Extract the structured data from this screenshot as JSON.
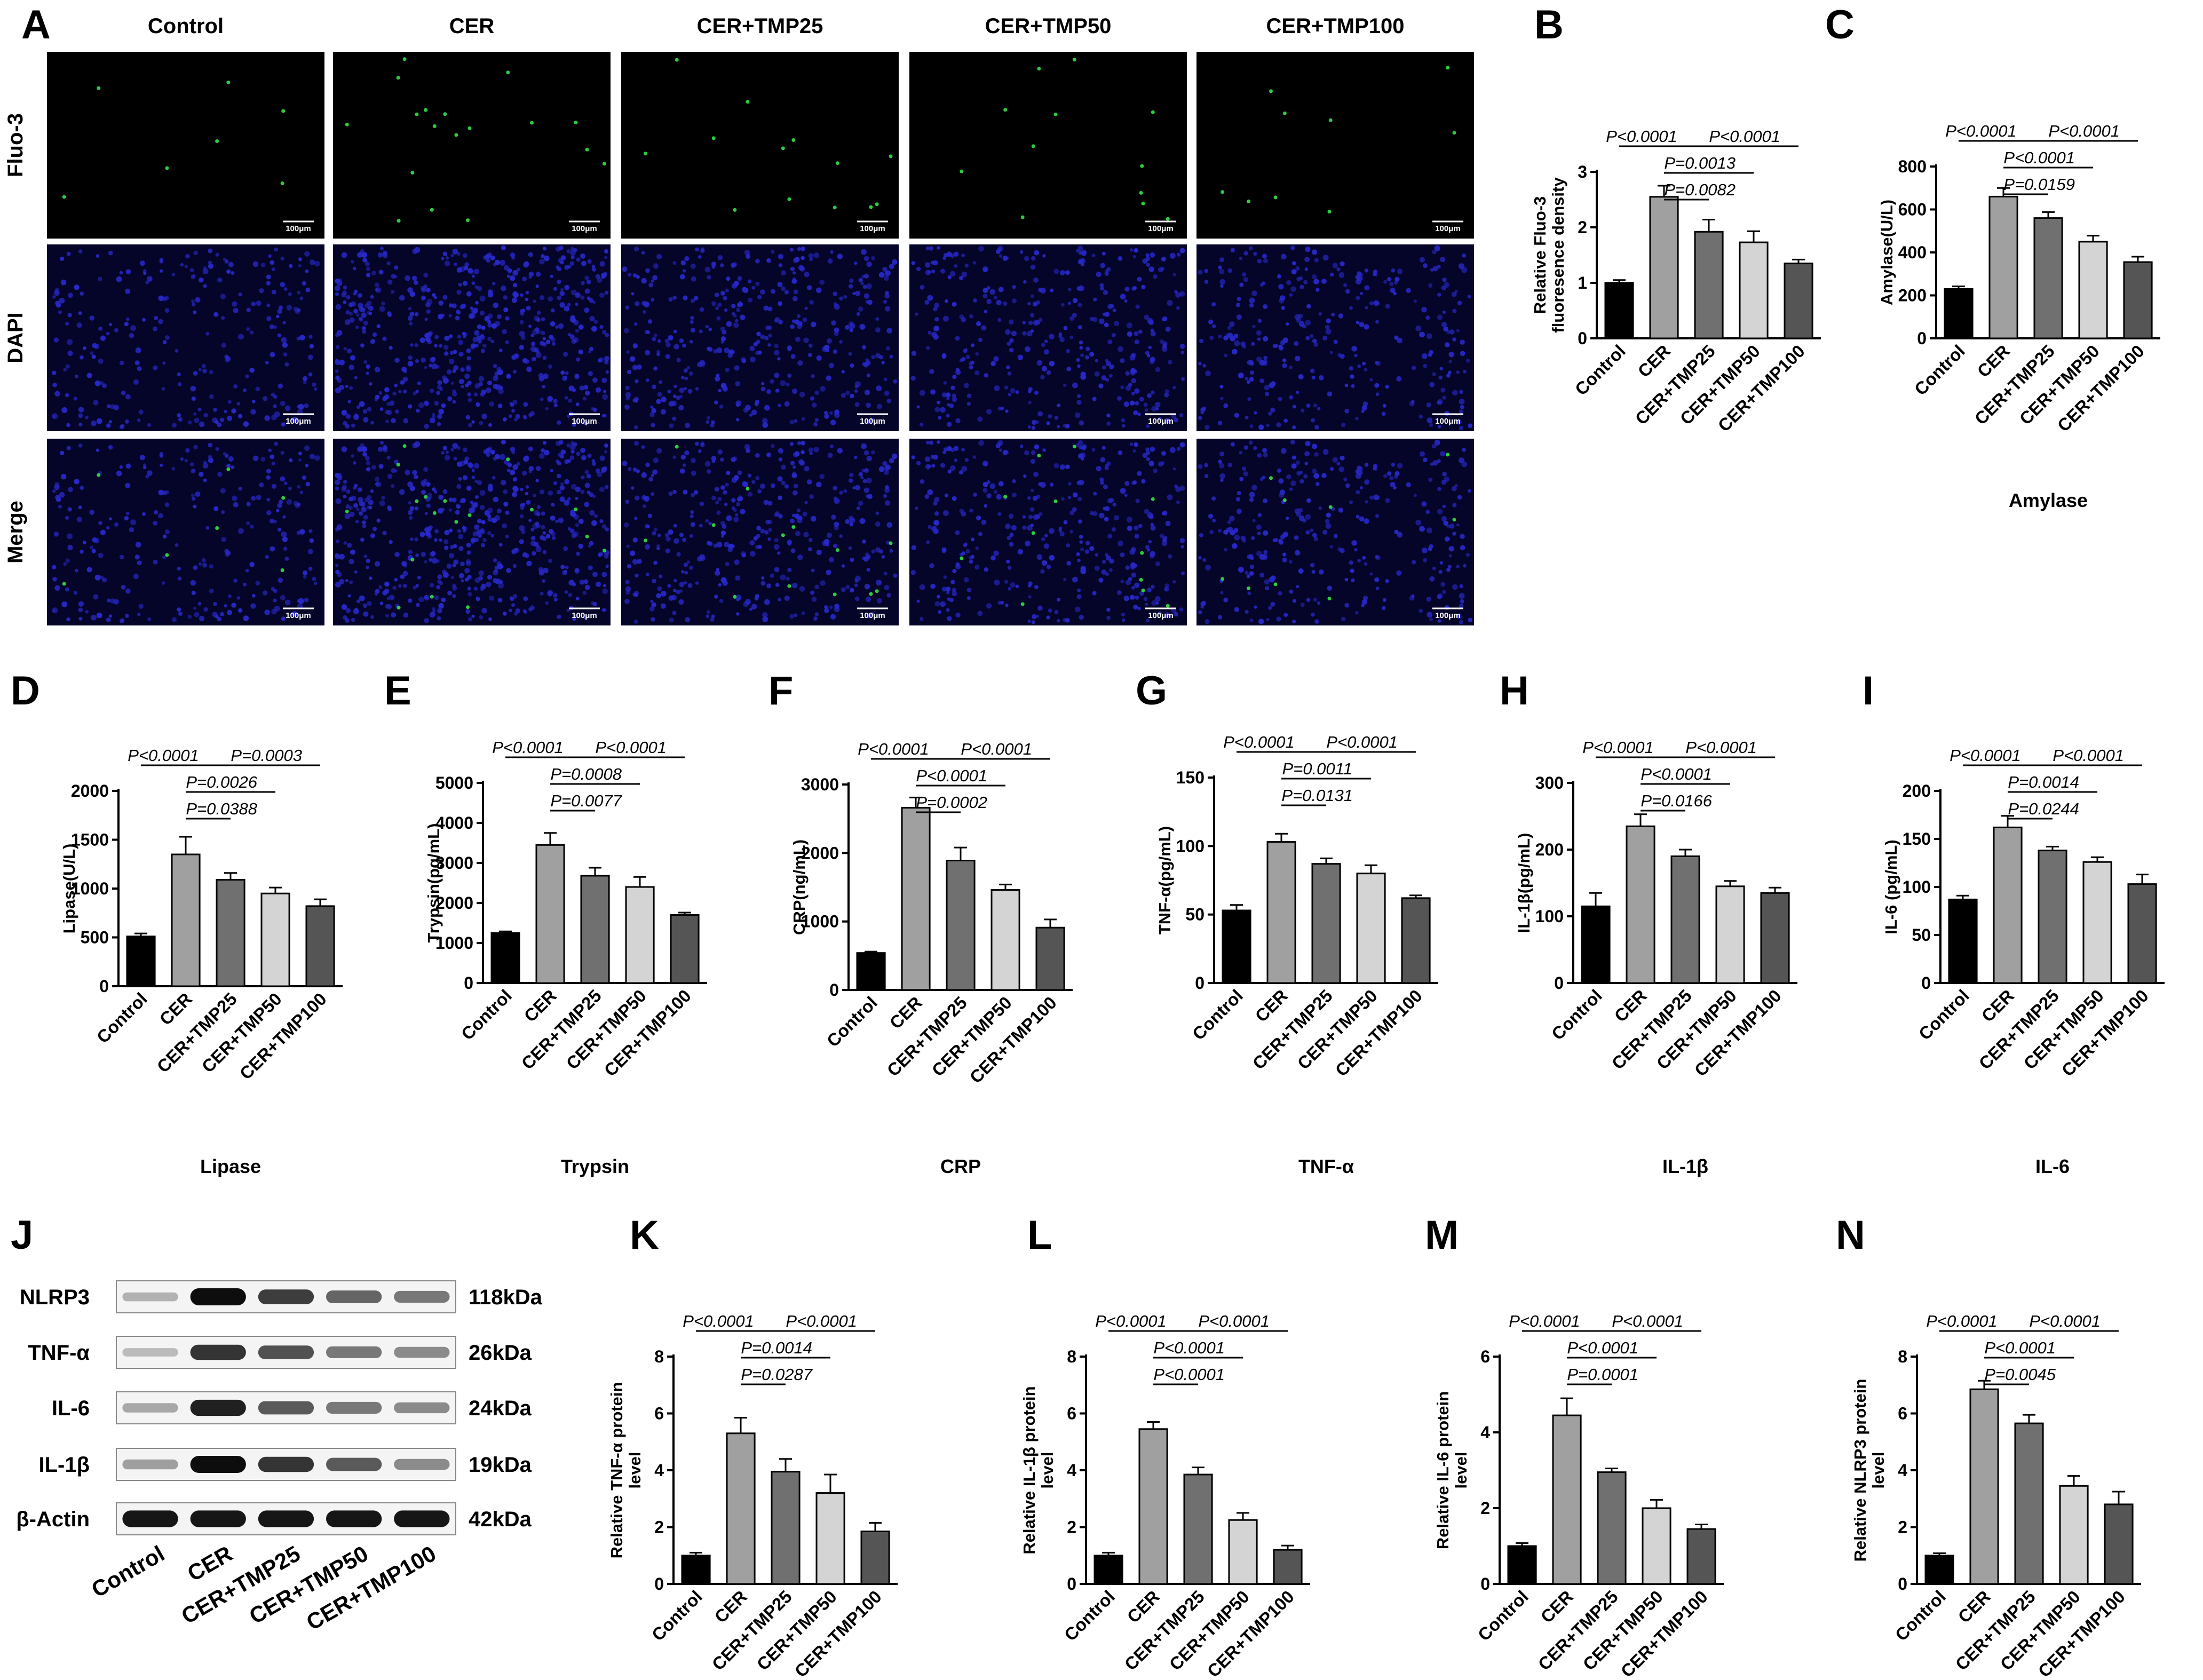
{
  "figure": {
    "panel_letters": [
      "A",
      "B",
      "C",
      "D",
      "E",
      "F",
      "G",
      "H",
      "I",
      "J",
      "K",
      "L",
      "M",
      "N"
    ],
    "groups": [
      "Control",
      "CER",
      "CER+TMP25",
      "CER+TMP50",
      "CER+TMP100"
    ],
    "colors": {
      "bars": [
        "#000000",
        "#a0a0a0",
        "#707070",
        "#d4d4d4",
        "#555555"
      ],
      "fluo_dots": "#2ecc40",
      "dapi_nuclei": "#2828c8",
      "image_bg": "#000000",
      "dapi_bg": "#05052a"
    }
  },
  "panel_A": {
    "column_headers": [
      "Control",
      "CER",
      "CER+TMP25",
      "CER+TMP50",
      "CER+TMP100"
    ],
    "row_labels": [
      "Fluo-3",
      "DAPI",
      "Merge"
    ],
    "scale_bar_label": "100μm",
    "relative_signal": {
      "fluo_density": [
        1.0,
        2.55,
        1.92,
        1.73,
        1.35
      ],
      "nuclei_density": [
        1.0,
        2.2,
        1.5,
        1.4,
        1.2
      ]
    }
  },
  "panel_J": {
    "bands": [
      {
        "name": "NLRP3",
        "kda": "118kDa",
        "intensity": [
          0.15,
          1.0,
          0.75,
          0.55,
          0.45
        ]
      },
      {
        "name": "TNF-α",
        "kda": "26kDa",
        "intensity": [
          0.1,
          0.8,
          0.65,
          0.45,
          0.35
        ]
      },
      {
        "name": "IL-6",
        "kda": "24kDa",
        "intensity": [
          0.2,
          0.9,
          0.6,
          0.45,
          0.35
        ]
      },
      {
        "name": "IL-1β",
        "kda": "19kDa",
        "intensity": [
          0.25,
          1.0,
          0.8,
          0.6,
          0.35
        ]
      },
      {
        "name": "β-Actin",
        "kda": "42kDa",
        "intensity": [
          0.95,
          0.95,
          0.95,
          0.95,
          0.95
        ]
      }
    ],
    "lane_labels": [
      "Control",
      "CER",
      "CER+TMP25",
      "CER+TMP50",
      "CER+TMP100"
    ]
  },
  "chart_data": [
    {
      "panel": "B",
      "type": "bar",
      "title": "",
      "xlabel": "",
      "ylabel": "Relative Fluo-3 fluoresence density",
      "categories": [
        "Control",
        "CER",
        "CER+TMP25",
        "CER+TMP50",
        "CER+TMP100"
      ],
      "values": [
        1.0,
        2.55,
        1.92,
        1.73,
        1.35
      ],
      "errors": [
        0.05,
        0.2,
        0.22,
        0.2,
        0.07
      ],
      "ylim": [
        0,
        3
      ],
      "yticks": [
        0,
        1,
        2,
        3
      ],
      "comparisons": [
        {
          "from": 0,
          "to": 1,
          "label": "P<0.0001"
        },
        {
          "from": 1,
          "to": 4,
          "label": "P<0.0001"
        },
        {
          "from": 1,
          "to": 3,
          "label": "P=0.0013"
        },
        {
          "from": 1,
          "to": 2,
          "label": "P=0.0082"
        }
      ]
    },
    {
      "panel": "C",
      "type": "bar",
      "title": "Amylase",
      "xlabel": "",
      "ylabel": "Amylase(U/L)",
      "categories": [
        "Control",
        "CER",
        "CER+TMP25",
        "CER+TMP50",
        "CER+TMP100"
      ],
      "values": [
        230,
        660,
        560,
        450,
        355
      ],
      "errors": [
        12,
        40,
        28,
        28,
        25
      ],
      "ylim": [
        0,
        800
      ],
      "yticks": [
        0,
        200,
        400,
        600,
        800
      ],
      "comparisons": [
        {
          "from": 0,
          "to": 1,
          "label": "P<0.0001"
        },
        {
          "from": 1,
          "to": 4,
          "label": "P<0.0001"
        },
        {
          "from": 1,
          "to": 3,
          "label": "P<0.0001"
        },
        {
          "from": 1,
          "to": 2,
          "label": "P=0.0159"
        }
      ]
    },
    {
      "panel": "D",
      "type": "bar",
      "title": "Lipase",
      "xlabel": "",
      "ylabel": "Lipase(U/L)",
      "categories": [
        "Control",
        "CER",
        "CER+TMP25",
        "CER+TMP50",
        "CER+TMP100"
      ],
      "values": [
        510,
        1350,
        1090,
        950,
        820
      ],
      "errors": [
        30,
        180,
        70,
        60,
        70
      ],
      "ylim": [
        0,
        2000
      ],
      "yticks": [
        0,
        500,
        1000,
        1500,
        2000
      ],
      "comparisons": [
        {
          "from": 0,
          "to": 1,
          "label": "P<0.0001"
        },
        {
          "from": 1,
          "to": 4,
          "label": "P=0.0003"
        },
        {
          "from": 1,
          "to": 3,
          "label": "P=0.0026"
        },
        {
          "from": 1,
          "to": 2,
          "label": "P=0.0388"
        }
      ]
    },
    {
      "panel": "E",
      "type": "bar",
      "title": "Trypsin",
      "xlabel": "",
      "ylabel": "Trypsin(pg/mL)",
      "categories": [
        "Control",
        "CER",
        "CER+TMP25",
        "CER+TMP50",
        "CER+TMP100"
      ],
      "values": [
        1250,
        3450,
        2680,
        2400,
        1700
      ],
      "errors": [
        40,
        300,
        200,
        250,
        60
      ],
      "ylim": [
        0,
        5000
      ],
      "yticks": [
        0,
        1000,
        2000,
        3000,
        4000,
        5000
      ],
      "comparisons": [
        {
          "from": 0,
          "to": 1,
          "label": "P<0.0001"
        },
        {
          "from": 1,
          "to": 4,
          "label": "P<0.0001"
        },
        {
          "from": 1,
          "to": 3,
          "label": "P=0.0008"
        },
        {
          "from": 1,
          "to": 2,
          "label": "P=0.0077"
        }
      ]
    },
    {
      "panel": "F",
      "type": "bar",
      "title": "CRP",
      "xlabel": "",
      "ylabel": "CRP(ng/mL)",
      "categories": [
        "Control",
        "CER",
        "CER+TMP25",
        "CER+TMP50",
        "CER+TMP100"
      ],
      "values": [
        540,
        2660,
        1890,
        1460,
        910
      ],
      "errors": [
        20,
        150,
        190,
        80,
        120
      ],
      "ylim": [
        0,
        3000
      ],
      "yticks": [
        0,
        1000,
        2000,
        3000
      ],
      "comparisons": [
        {
          "from": 0,
          "to": 1,
          "label": "P<0.0001"
        },
        {
          "from": 1,
          "to": 4,
          "label": "P<0.0001"
        },
        {
          "from": 1,
          "to": 3,
          "label": "P<0.0001"
        },
        {
          "from": 1,
          "to": 2,
          "label": "P=0.0002"
        }
      ]
    },
    {
      "panel": "G",
      "type": "bar",
      "title": "TNF-α",
      "xlabel": "",
      "ylabel": "TNF-α(pg/mL)",
      "categories": [
        "Control",
        "CER",
        "CER+TMP25",
        "CER+TMP50",
        "CER+TMP100"
      ],
      "values": [
        53,
        103,
        87,
        80,
        62
      ],
      "errors": [
        4,
        6,
        4,
        6,
        2
      ],
      "ylim": [
        0,
        150
      ],
      "yticks": [
        0,
        50,
        100,
        150
      ],
      "comparisons": [
        {
          "from": 0,
          "to": 1,
          "label": "P<0.0001"
        },
        {
          "from": 1,
          "to": 4,
          "label": "P<0.0001"
        },
        {
          "from": 1,
          "to": 3,
          "label": "P=0.0011"
        },
        {
          "from": 1,
          "to": 2,
          "label": "P=0.0131"
        }
      ]
    },
    {
      "panel": "H",
      "type": "bar",
      "title": "IL-1β",
      "xlabel": "",
      "ylabel": "IL-1β(pg/mL)",
      "categories": [
        "Control",
        "CER",
        "CER+TMP25",
        "CER+TMP50",
        "CER+TMP100"
      ],
      "values": [
        115,
        235,
        190,
        145,
        135
      ],
      "errors": [
        20,
        18,
        10,
        8,
        8
      ],
      "ylim": [
        0,
        300
      ],
      "yticks": [
        0,
        100,
        200,
        300
      ],
      "comparisons": [
        {
          "from": 0,
          "to": 1,
          "label": "P<0.0001"
        },
        {
          "from": 1,
          "to": 4,
          "label": "P<0.0001"
        },
        {
          "from": 1,
          "to": 3,
          "label": "P<0.0001"
        },
        {
          "from": 1,
          "to": 2,
          "label": "P=0.0166"
        }
      ]
    },
    {
      "panel": "I",
      "type": "bar",
      "title": "IL-6",
      "xlabel": "",
      "ylabel": "IL-6 (pg/mL)",
      "categories": [
        "Control",
        "CER",
        "CER+TMP25",
        "CER+TMP50",
        "CER+TMP100"
      ],
      "values": [
        87,
        162,
        138,
        126,
        103
      ],
      "errors": [
        4,
        12,
        4,
        5,
        10
      ],
      "ylim": [
        0,
        200
      ],
      "yticks": [
        0,
        50,
        100,
        150,
        200
      ],
      "comparisons": [
        {
          "from": 0,
          "to": 1,
          "label": "P<0.0001"
        },
        {
          "from": 1,
          "to": 4,
          "label": "P<0.0001"
        },
        {
          "from": 1,
          "to": 3,
          "label": "P=0.0014"
        },
        {
          "from": 1,
          "to": 2,
          "label": "P=0.0244"
        }
      ]
    },
    {
      "panel": "K",
      "type": "bar",
      "title": "",
      "xlabel": "",
      "ylabel": "Relative TNF-α protein level",
      "categories": [
        "Control",
        "CER",
        "CER+TMP25",
        "CER+TMP50",
        "CER+TMP100"
      ],
      "values": [
        1.0,
        5.3,
        3.95,
        3.2,
        1.85
      ],
      "errors": [
        0.1,
        0.55,
        0.45,
        0.65,
        0.3
      ],
      "ylim": [
        0,
        8
      ],
      "yticks": [
        0,
        2,
        4,
        6,
        8
      ],
      "comparisons": [
        {
          "from": 0,
          "to": 1,
          "label": "P<0.0001"
        },
        {
          "from": 1,
          "to": 4,
          "label": "P<0.0001"
        },
        {
          "from": 1,
          "to": 3,
          "label": "P=0.0014"
        },
        {
          "from": 1,
          "to": 2,
          "label": "P=0.0287"
        }
      ]
    },
    {
      "panel": "L",
      "type": "bar",
      "title": "",
      "xlabel": "",
      "ylabel": "Relative IL-1β protein level",
      "categories": [
        "Control",
        "CER",
        "CER+TMP25",
        "CER+TMP50",
        "CER+TMP100"
      ],
      "values": [
        1.0,
        5.45,
        3.85,
        2.25,
        1.2
      ],
      "errors": [
        0.1,
        0.25,
        0.25,
        0.25,
        0.15
      ],
      "ylim": [
        0,
        8
      ],
      "yticks": [
        0,
        2,
        4,
        6,
        8
      ],
      "comparisons": [
        {
          "from": 0,
          "to": 1,
          "label": "P<0.0001"
        },
        {
          "from": 1,
          "to": 4,
          "label": "P<0.0001"
        },
        {
          "from": 1,
          "to": 3,
          "label": "P<0.0001"
        },
        {
          "from": 1,
          "to": 2,
          "label": "P<0.0001"
        }
      ]
    },
    {
      "panel": "M",
      "type": "bar",
      "title": "",
      "xlabel": "",
      "ylabel": "Relative IL-6 protein level",
      "categories": [
        "Control",
        "CER",
        "CER+TMP25",
        "CER+TMP50",
        "CER+TMP100"
      ],
      "values": [
        1.0,
        4.45,
        2.95,
        2.0,
        1.45
      ],
      "errors": [
        0.08,
        0.45,
        0.1,
        0.22,
        0.12
      ],
      "ylim": [
        0,
        6
      ],
      "yticks": [
        0,
        2,
        4,
        6
      ],
      "comparisons": [
        {
          "from": 0,
          "to": 1,
          "label": "P<0.0001"
        },
        {
          "from": 1,
          "to": 4,
          "label": "P<0.0001"
        },
        {
          "from": 1,
          "to": 3,
          "label": "P<0.0001"
        },
        {
          "from": 1,
          "to": 2,
          "label": "P=0.0001"
        }
      ]
    },
    {
      "panel": "N",
      "type": "bar",
      "title": "",
      "xlabel": "",
      "ylabel": "Relative NLRP3 protein level",
      "categories": [
        "Control",
        "CER",
        "CER+TMP25",
        "CER+TMP50",
        "CER+TMP100"
      ],
      "values": [
        1.0,
        6.85,
        5.65,
        3.45,
        2.8
      ],
      "errors": [
        0.08,
        0.3,
        0.3,
        0.35,
        0.45
      ],
      "ylim": [
        0,
        8
      ],
      "yticks": [
        0,
        2,
        4,
        6,
        8
      ],
      "comparisons": [
        {
          "from": 0,
          "to": 1,
          "label": "P<0.0001"
        },
        {
          "from": 1,
          "to": 4,
          "label": "P<0.0001"
        },
        {
          "from": 1,
          "to": 3,
          "label": "P<0.0001"
        },
        {
          "from": 1,
          "to": 2,
          "label": "P=0.0045"
        }
      ]
    }
  ]
}
